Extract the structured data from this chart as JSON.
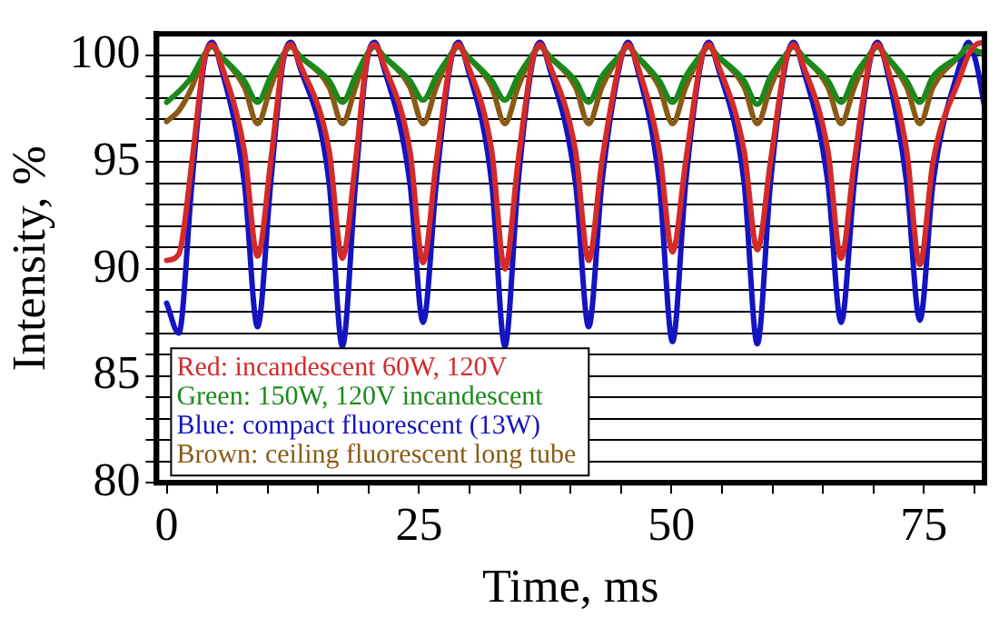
{
  "chart_data": {
    "type": "line",
    "xlabel": "Time, ms",
    "ylabel": "Intensity, %",
    "x": [
      0,
      1.2,
      2.5,
      3.7,
      4.5,
      5.3,
      7.7,
      9.0,
      10.3,
      11.5,
      12.3,
      13.1,
      16.1,
      17.4,
      18.7,
      19.8,
      20.6,
      21.4,
      24.1,
      25.4,
      26.7,
      28.1,
      28.9,
      29.7,
      32.2,
      33.5,
      34.8,
      36.2,
      37.0,
      37.8,
      40.5,
      41.8,
      43.1,
      44.9,
      45.7,
      46.5,
      48.8,
      50.1,
      51.4,
      52.9,
      53.7,
      54.5,
      57.2,
      58.5,
      59.8,
      61.3,
      62.1,
      62.9,
      65.5,
      66.8,
      68.1,
      69.6,
      70.4,
      71.2,
      73.3,
      74.6,
      75.9,
      78.6,
      79.4,
      80.2,
      81
    ],
    "series": [
      {
        "name": "Red: incandescent 60W, 120V",
        "color": "#d42a2a",
        "values": [
          90.4,
          90.7,
          95,
          99.7,
          100.5,
          99.7,
          95.5,
          90.6,
          95,
          99.7,
          100.5,
          99.7,
          95.5,
          90.5,
          95,
          99.7,
          100.5,
          99.7,
          95.5,
          90.3,
          95,
          99.7,
          100.5,
          99.7,
          95.5,
          90.0,
          95,
          99.7,
          100.5,
          99.7,
          95.5,
          90.4,
          95,
          99.7,
          100.5,
          99.7,
          95.5,
          90.8,
          95,
          99.7,
          100.5,
          99.7,
          95.5,
          90.9,
          95,
          99.7,
          100.5,
          99.7,
          95.5,
          90.5,
          95,
          99.7,
          100.5,
          99.7,
          95.5,
          90.2,
          95,
          99,
          100,
          100.5,
          100.6
        ]
      },
      {
        "name": "Green: 150W, 120V incandescent",
        "color": "#1a8a1a",
        "values": [
          97.8,
          98.3,
          99,
          100,
          100.4,
          100,
          98.8,
          97.8,
          99,
          100,
          100.4,
          100,
          98.8,
          97.8,
          99,
          100,
          100.4,
          100,
          98.8,
          97.9,
          99,
          100,
          100.4,
          100,
          98.8,
          97.9,
          99,
          100,
          100.4,
          100,
          98.8,
          97.8,
          99,
          100,
          100.4,
          100,
          98.8,
          97.8,
          99,
          100,
          100.4,
          100,
          98.8,
          97.7,
          99,
          100,
          100.4,
          100,
          98.8,
          97.8,
          99,
          100,
          100.4,
          100,
          98.8,
          97.8,
          99,
          100,
          100.4,
          100.2,
          100
        ]
      },
      {
        "name": "Blue: compact fluorescent (13W)",
        "color": "#1414c0",
        "values": [
          88.4,
          87.0,
          94,
          99.6,
          100.6,
          99.6,
          94,
          87.3,
          94,
          99.6,
          100.6,
          99.6,
          94,
          86.4,
          94,
          99.6,
          100.6,
          99.6,
          94,
          87.5,
          94,
          99.6,
          100.6,
          99.6,
          94,
          86.4,
          94,
          99.6,
          100.6,
          99.6,
          94,
          87.3,
          94,
          99.6,
          100.6,
          99.6,
          94,
          86.6,
          94,
          99.6,
          100.6,
          99.6,
          94,
          86.5,
          94,
          99.6,
          100.6,
          99.6,
          94,
          87.5,
          94,
          99.6,
          100.6,
          99.6,
          94,
          87.6,
          94,
          99.6,
          100.6,
          99.6,
          97.6
        ]
      },
      {
        "name": "Brown: ceiling fluorescent long tube",
        "color": "#8a5a14",
        "values": [
          96.9,
          97.4,
          98.5,
          100,
          100.4,
          100,
          98.5,
          96.8,
          98.5,
          100,
          100.4,
          100,
          98.5,
          96.8,
          98.5,
          100,
          100.4,
          100,
          98.5,
          96.8,
          98.5,
          100,
          100.4,
          100,
          98.5,
          96.8,
          98.5,
          100,
          100.4,
          100,
          98.5,
          96.8,
          98.5,
          100,
          100.4,
          100,
          98.5,
          96.8,
          98.5,
          100,
          100.4,
          100,
          98.5,
          96.8,
          98.5,
          100,
          100.4,
          100,
          98.5,
          96.8,
          98.5,
          100,
          100.4,
          100,
          98.5,
          96.8,
          98.5,
          100,
          100.4,
          100.2,
          100.1
        ]
      }
    ],
    "xlim": [
      -1,
      81
    ],
    "ylim": [
      80,
      101
    ],
    "xticks": [
      0,
      {
        "value": 5,
        "label": null
      },
      {
        "value": 10,
        "label": null
      },
      {
        "value": 15,
        "label": null
      },
      {
        "value": 20,
        "label": null
      },
      25,
      {
        "value": 30,
        "label": null
      },
      {
        "value": 35,
        "label": null
      },
      {
        "value": 40,
        "label": null
      },
      {
        "value": 45,
        "label": null
      },
      50,
      {
        "value": 55,
        "label": null
      },
      {
        "value": 60,
        "label": null
      },
      {
        "value": 65,
        "label": null
      },
      {
        "value": 70,
        "label": null
      },
      75,
      {
        "value": 80,
        "label": null
      }
    ],
    "yticks": [
      80,
      {
        "value": 81,
        "label": null
      },
      {
        "value": 82,
        "label": null
      },
      {
        "value": 83,
        "label": null
      },
      {
        "value": 84,
        "label": null
      },
      85,
      {
        "value": 86,
        "label": null
      },
      {
        "value": 87,
        "label": null
      },
      {
        "value": 88,
        "label": null
      },
      {
        "value": 89,
        "label": null
      },
      90,
      {
        "value": 91,
        "label": null
      },
      {
        "value": 92,
        "label": null
      },
      {
        "value": 93,
        "label": null
      },
      {
        "value": 94,
        "label": null
      },
      95,
      {
        "value": 96,
        "label": null
      },
      {
        "value": 97,
        "label": null
      },
      {
        "value": 98,
        "label": null
      },
      {
        "value": 99,
        "label": null
      },
      100
    ],
    "grid": "y",
    "legend": "bottom left",
    "marker": "none",
    "line_style": "solid"
  }
}
